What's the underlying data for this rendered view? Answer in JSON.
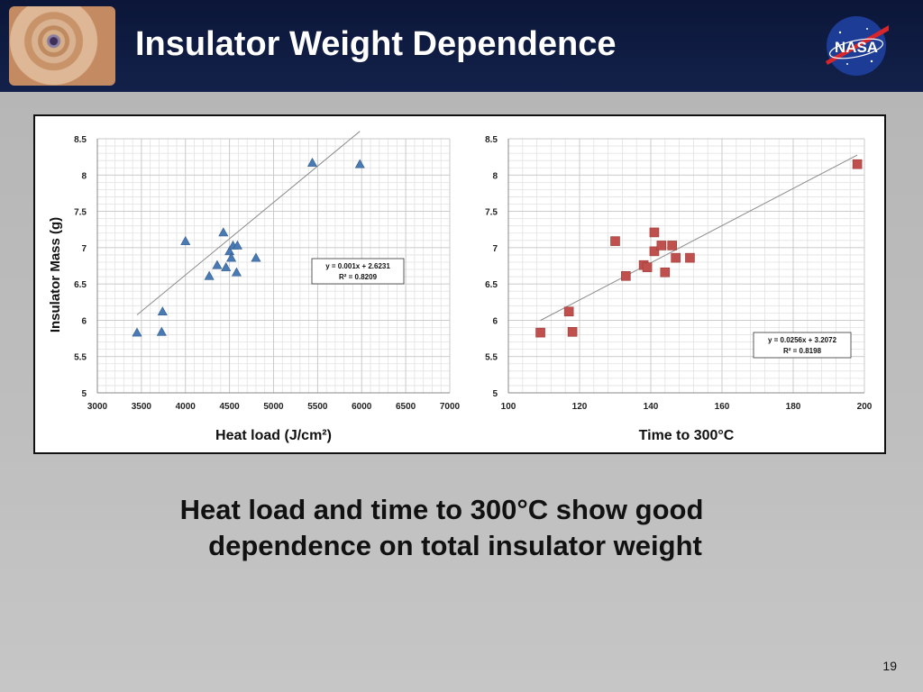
{
  "slide": {
    "title": "Insulator Weight Dependence",
    "caption_line1": "Heat load and time to 300°C show good",
    "caption_line2": "dependence on total insulator weight",
    "page_number": "19",
    "logo_text": "NASA"
  },
  "colors": {
    "header": "#0f1b44",
    "series_left": "#4a7ab4",
    "series_right": "#c0504d",
    "trendline": "#8c8c8c"
  },
  "chart_data": [
    {
      "type": "scatter",
      "xlabel": "Heat load (J/cm²)",
      "ylabel": "Insulator Mass (g)",
      "xlim": [
        3000,
        7000
      ],
      "ylim": [
        5,
        8.5
      ],
      "x_ticks": [
        3000,
        3500,
        4000,
        4500,
        5000,
        5500,
        6000,
        6500,
        7000
      ],
      "y_ticks": [
        5,
        5.5,
        6,
        6.5,
        7,
        7.5,
        8,
        8.5
      ],
      "grid": true,
      "marker": "triangle",
      "series": [
        {
          "points": [
            [
              3450,
              5.83
            ],
            [
              3730,
              5.84
            ],
            [
              3740,
              6.12
            ],
            [
              4000,
              7.09
            ],
            [
              4270,
              6.61
            ],
            [
              4360,
              6.76
            ],
            [
              4430,
              7.21
            ],
            [
              4460,
              6.73
            ],
            [
              4500,
              6.95
            ],
            [
              4520,
              6.86
            ],
            [
              4540,
              7.03
            ],
            [
              4580,
              6.66
            ],
            [
              4590,
              7.03
            ],
            [
              4800,
              6.86
            ],
            [
              5440,
              8.17
            ],
            [
              5980,
              8.15
            ]
          ]
        }
      ],
      "trendline": {
        "slope": 0.001,
        "intercept": 2.6231,
        "x_range": [
          3450,
          5980
        ],
        "equation": "y = 0.001x + 2.6231",
        "r2": "R² = 0.8209",
        "box_position": "right-middle"
      }
    },
    {
      "type": "scatter",
      "xlabel": "Time to 300°C",
      "ylabel": "",
      "xlim": [
        100,
        200
      ],
      "ylim": [
        5,
        8.5
      ],
      "x_ticks": [
        100,
        120,
        140,
        160,
        180,
        200
      ],
      "y_ticks": [
        5,
        5.5,
        6,
        6.5,
        7,
        7.5,
        8,
        8.5
      ],
      "grid": true,
      "marker": "square",
      "series": [
        {
          "points": [
            [
              109,
              5.83
            ],
            [
              117,
              6.12
            ],
            [
              118,
              5.84
            ],
            [
              130,
              7.09
            ],
            [
              133,
              6.61
            ],
            [
              138,
              6.76
            ],
            [
              139,
              6.73
            ],
            [
              141,
              7.21
            ],
            [
              141,
              6.95
            ],
            [
              143,
              7.03
            ],
            [
              144,
              6.66
            ],
            [
              146,
              7.03
            ],
            [
              147,
              6.86
            ],
            [
              151,
              6.86
            ],
            [
              198,
              8.15
            ]
          ]
        }
      ],
      "trendline": {
        "slope": 0.0256,
        "intercept": 3.2072,
        "x_range": [
          109,
          198
        ],
        "equation": "y = 0.0256x + 3.2072",
        "r2": "R² = 0.8198",
        "box_position": "bottom-right"
      }
    }
  ]
}
